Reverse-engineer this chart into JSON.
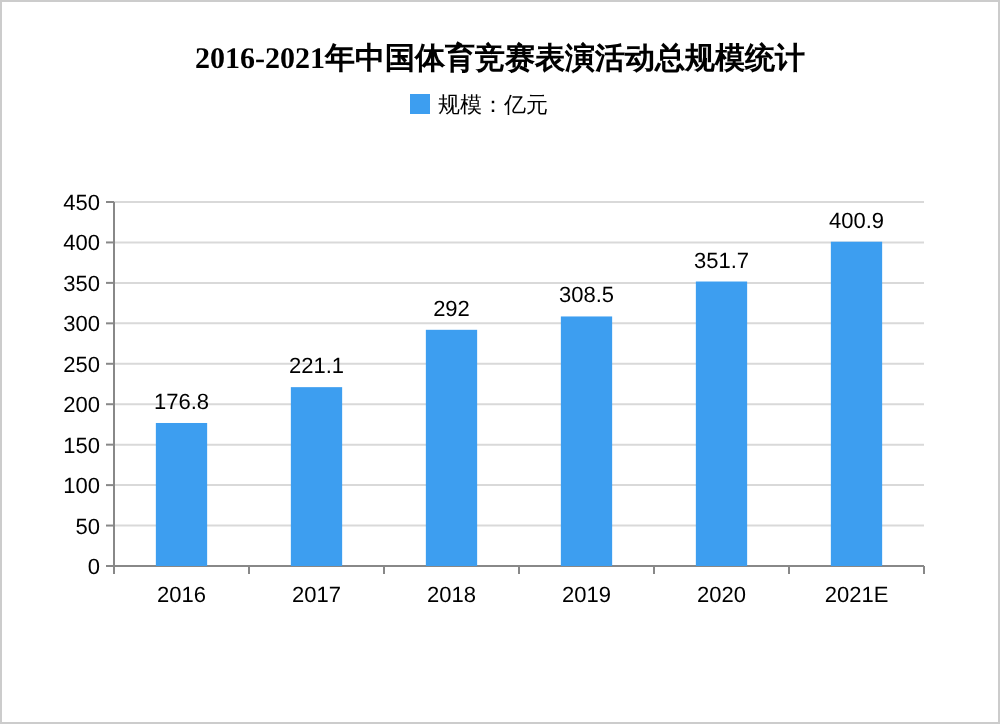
{
  "chart_data": {
    "type": "bar",
    "title": "2016-2021年中国体育竞赛表演活动总规模统计",
    "categories": [
      "2016",
      "2017",
      "2018",
      "2019",
      "2020",
      "2021E"
    ],
    "series": [
      {
        "name": "规模：亿元",
        "color": "#3d9ef0",
        "values": [
          176.8,
          221.1,
          292,
          308.5,
          351.7,
          400.9
        ]
      }
    ],
    "ylim": [
      0,
      450
    ],
    "yticks": [
      0,
      50,
      100,
      150,
      200,
      250,
      300,
      350,
      400,
      450
    ],
    "grid": "y",
    "legend": "top",
    "data_labels": true
  }
}
